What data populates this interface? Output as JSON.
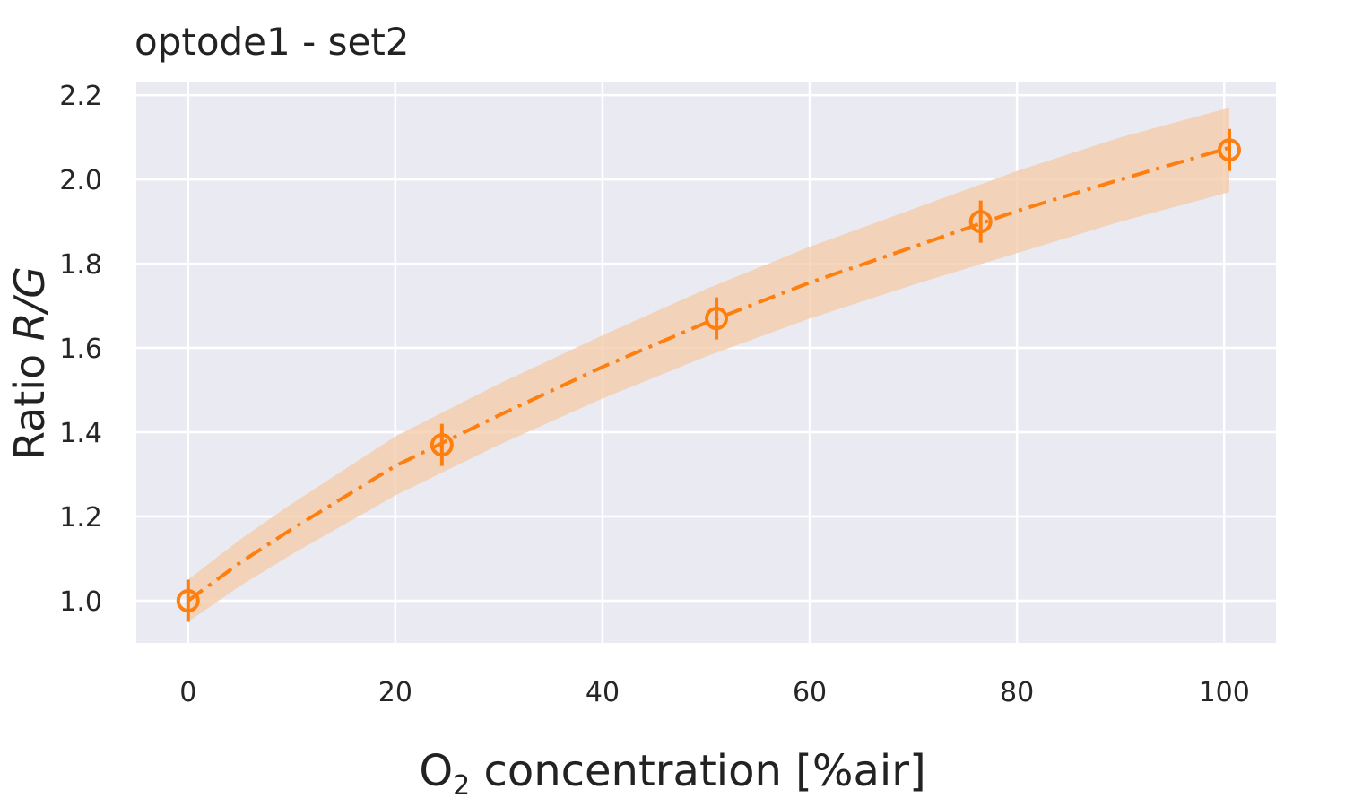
{
  "chart_data": {
    "type": "line",
    "title": "optode1 - set2",
    "xlabel": {
      "prefix": "O",
      "subscript": "2",
      "suffix": " concentration [%air]"
    },
    "ylabel": {
      "text": "Ratio ",
      "italic": "R/G"
    },
    "xlim": [
      -5,
      105
    ],
    "ylim": [
      0.9,
      2.23
    ],
    "xticks": [
      0,
      20,
      40,
      60,
      80,
      100
    ],
    "yticks": [
      1.0,
      1.2,
      1.4,
      1.6,
      1.8,
      2.0,
      2.2
    ],
    "grid": true,
    "background": "#EAEAF2",
    "series": [
      {
        "style": "markers-with-errorbars",
        "color": "#FF7F0E",
        "x": [
          0,
          24.5,
          51,
          76.5,
          100.5
        ],
        "y": [
          1.0,
          1.37,
          1.67,
          1.9,
          2.07
        ],
        "yerr": [
          0.05,
          0.05,
          0.05,
          0.05,
          0.05
        ]
      },
      {
        "style": "fit-dashdot",
        "color": "#FF7F0E",
        "x": [
          0,
          5,
          10,
          20,
          30,
          40,
          50,
          60,
          70,
          80,
          90,
          100.5
        ],
        "y": [
          1.0,
          1.09,
          1.17,
          1.32,
          1.44,
          1.555,
          1.66,
          1.755,
          1.84,
          1.925,
          2.0,
          2.075
        ]
      },
      {
        "style": "confidence-band",
        "color": "#F4C9A6",
        "x": [
          0,
          5,
          10,
          20,
          30,
          40,
          50,
          60,
          70,
          80,
          90,
          100.5
        ],
        "lower": [
          0.95,
          1.035,
          1.11,
          1.25,
          1.37,
          1.48,
          1.58,
          1.67,
          1.75,
          1.825,
          1.9,
          1.97
        ],
        "upper": [
          1.05,
          1.145,
          1.23,
          1.39,
          1.515,
          1.63,
          1.74,
          1.84,
          1.93,
          2.02,
          2.1,
          2.17
        ]
      }
    ]
  }
}
